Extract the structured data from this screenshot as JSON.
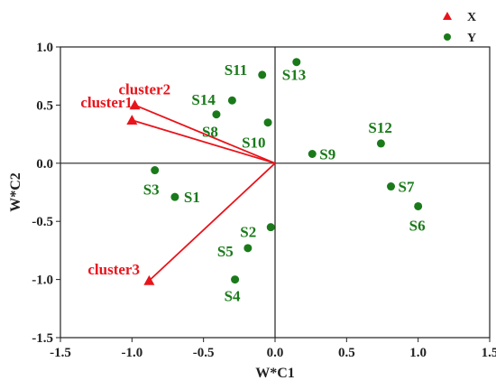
{
  "chart_data": {
    "type": "scatter",
    "xlabel": "W*C1",
    "ylabel": "W*C2",
    "xlim": [
      -1.5,
      1.5
    ],
    "ylim": [
      -1.5,
      1.0
    ],
    "xticks": [
      "-1.5",
      "-1.0",
      "-0.5",
      "0.0",
      "0.5",
      "1.0",
      "1.5"
    ],
    "yticks": [
      "-1.5",
      "-1.0",
      "-0.5",
      "0.0",
      "0.5",
      "1.0"
    ],
    "legend_position": "top-right",
    "series": [
      {
        "name": "X",
        "marker": "triangle",
        "color": "#e8141b",
        "arrows_from_origin": true,
        "points": [
          {
            "label": "cluster1",
            "x": -1.0,
            "y": 0.37
          },
          {
            "label": "cluster2",
            "x": -0.98,
            "y": 0.5
          },
          {
            "label": "cluster3",
            "x": -0.88,
            "y": -1.01
          }
        ]
      },
      {
        "name": "Y",
        "marker": "circle",
        "color": "#1a7a1a",
        "points": [
          {
            "label": "S1",
            "x": -0.7,
            "y": -0.29
          },
          {
            "label": "S2",
            "x": -0.03,
            "y": -0.55
          },
          {
            "label": "S3",
            "x": -0.84,
            "y": -0.06
          },
          {
            "label": "S4",
            "x": -0.28,
            "y": -1.0
          },
          {
            "label": "S5",
            "x": -0.19,
            "y": -0.73
          },
          {
            "label": "S6",
            "x": 1.0,
            "y": -0.37
          },
          {
            "label": "S7",
            "x": 0.81,
            "y": -0.2
          },
          {
            "label": "S8",
            "x": -0.41,
            "y": 0.42
          },
          {
            "label": "S9",
            "x": 0.26,
            "y": 0.08
          },
          {
            "label": "S10",
            "x": -0.05,
            "y": 0.35
          },
          {
            "label": "S11",
            "x": -0.09,
            "y": 0.76
          },
          {
            "label": "S12",
            "x": 0.74,
            "y": 0.17
          },
          {
            "label": "S13",
            "x": 0.15,
            "y": 0.87
          },
          {
            "label": "S14",
            "x": -0.3,
            "y": 0.54
          }
        ]
      }
    ]
  }
}
